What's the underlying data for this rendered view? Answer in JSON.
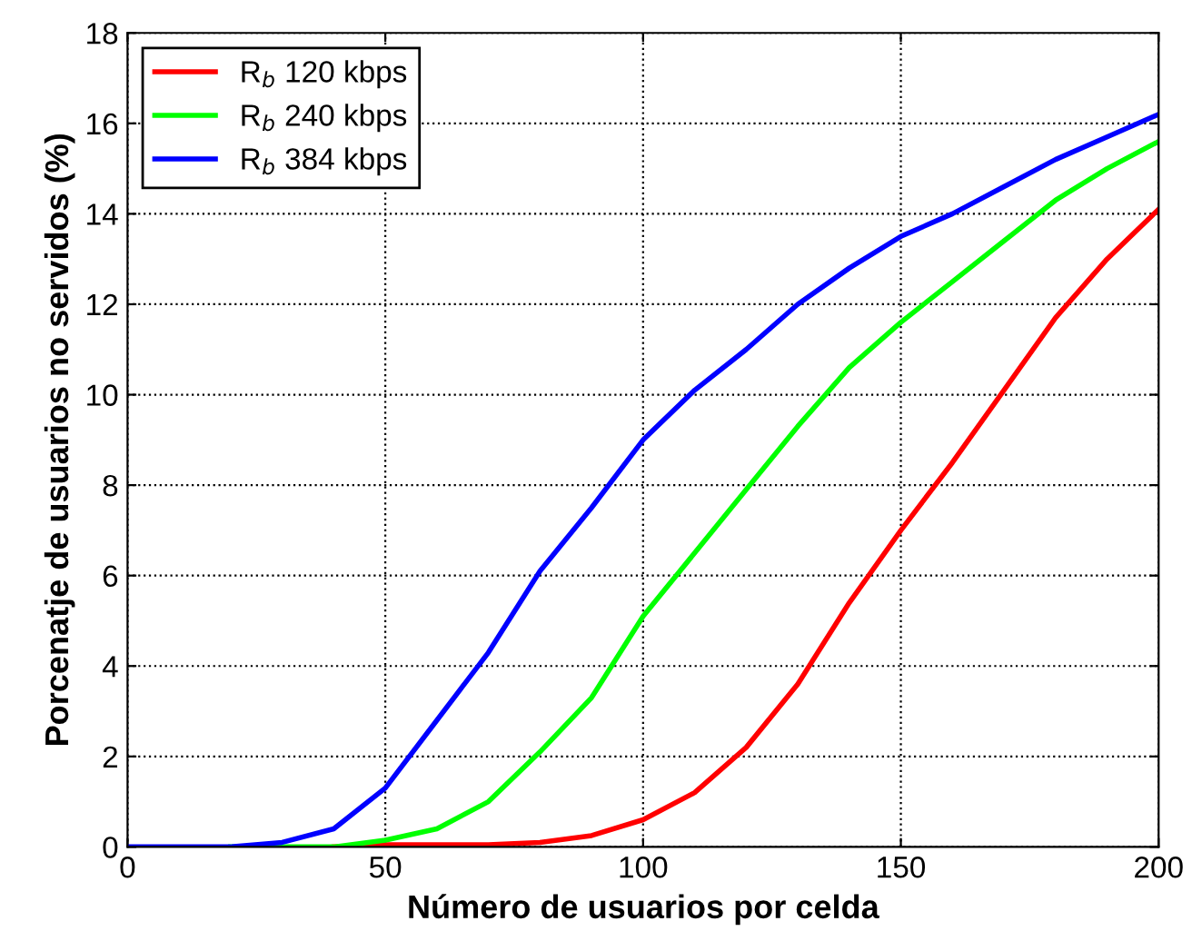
{
  "chart_data": {
    "type": "line",
    "xlabel": "Número de usuarios por celda",
    "ylabel": "Porcenatje de usuarios no servidos (%)",
    "x": [
      0,
      10,
      20,
      30,
      40,
      50,
      60,
      70,
      80,
      90,
      100,
      110,
      120,
      130,
      140,
      150,
      160,
      170,
      180,
      190,
      200
    ],
    "series": [
      {
        "name": "R$_{b}$ 120 kbps",
        "color": "#ff0000",
        "values": [
          null,
          null,
          null,
          null,
          0,
          0.05,
          0.05,
          0.05,
          0.1,
          0.25,
          0.6,
          1.2,
          2.2,
          3.6,
          5.4,
          7.0,
          8.5,
          10.1,
          11.7,
          13.0,
          14.1
        ]
      },
      {
        "name": "R$_{b}$ 240 kbps",
        "color": "#00ff00",
        "values": [
          null,
          null,
          0,
          0,
          0,
          0.15,
          0.4,
          1.0,
          2.1,
          3.3,
          5.1,
          6.5,
          7.9,
          9.3,
          10.6,
          11.6,
          12.5,
          13.4,
          14.3,
          15.0,
          15.6
        ]
      },
      {
        "name": "R$_{b}$ 384 kbps",
        "color": "#0000ff",
        "values": [
          0,
          0,
          0,
          0.1,
          0.4,
          1.3,
          2.8,
          4.3,
          6.1,
          7.5,
          9.0,
          10.1,
          11.0,
          12.0,
          12.8,
          13.5,
          14.0,
          14.6,
          15.2,
          15.7,
          16.2
        ]
      }
    ],
    "xlim": [
      0,
      200
    ],
    "xticks": [
      0,
      50,
      100,
      150,
      200
    ],
    "ylim": [
      0,
      18
    ],
    "yticks": [
      0,
      2,
      4,
      6,
      8,
      10,
      12,
      14,
      16,
      18
    ],
    "grid": true,
    "legend": "top left",
    "line_style": "solid",
    "marker": "none"
  }
}
